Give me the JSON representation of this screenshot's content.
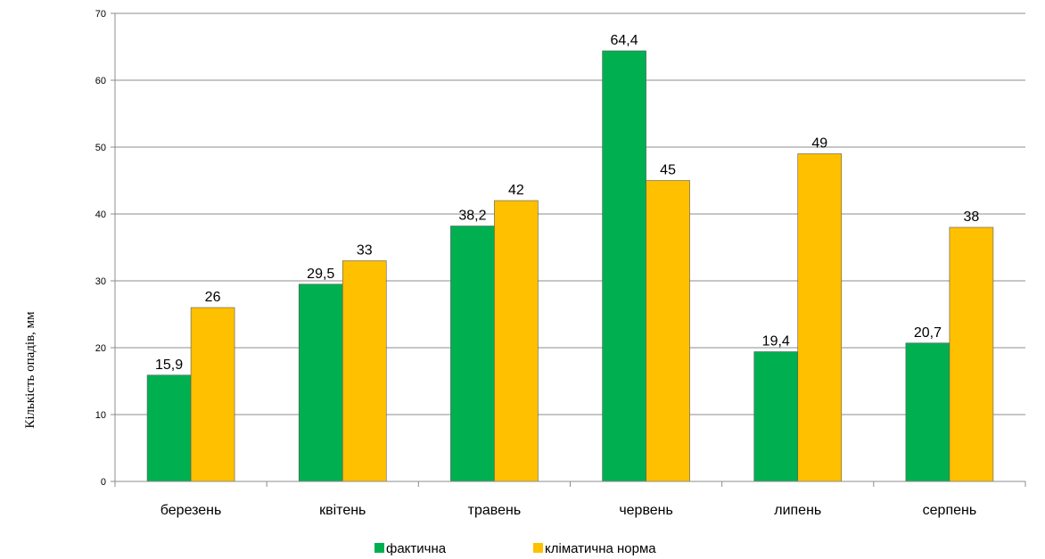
{
  "chart_data": {
    "type": "bar",
    "title": "",
    "xlabel": "",
    "ylabel": "Кількість опадів, мм",
    "categories": [
      "березень",
      "квітень",
      "травень",
      "червень",
      "липень",
      "серпень"
    ],
    "series": [
      {
        "name": "фактична",
        "color": "#00b050",
        "values": [
          15.9,
          29.5,
          38.2,
          64.4,
          19.4,
          20.7
        ],
        "labels": [
          "15,9",
          "29,5",
          "38,2",
          "64,4",
          "19,4",
          "20,7"
        ]
      },
      {
        "name": "кліматична норма",
        "color": "#ffc000",
        "values": [
          26,
          33,
          42,
          45,
          49,
          38
        ],
        "labels": [
          "26",
          "33",
          "42",
          "45",
          "49",
          "38"
        ]
      }
    ],
    "ylim": [
      0,
      70
    ],
    "yticks": [
      "0",
      "10",
      "20",
      "30",
      "40",
      "50",
      "60",
      "70"
    ],
    "grid": true,
    "legend": "bottom"
  }
}
